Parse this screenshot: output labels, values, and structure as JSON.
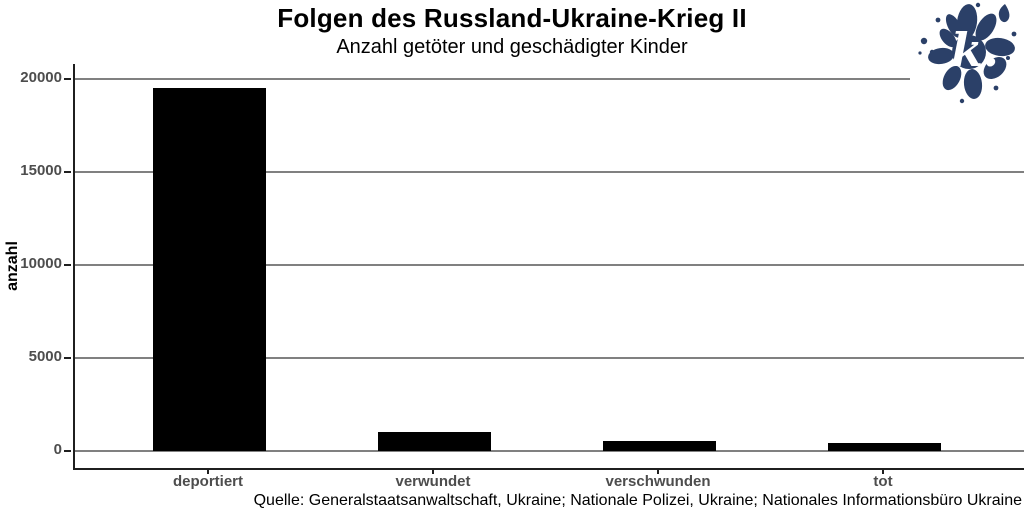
{
  "chart_data": {
    "type": "bar",
    "title": "Folgen des Russland-Ukraine-Krieg II",
    "subtitle": "Anzahl getöter und geschädigter Kinder",
    "ylabel": "anzahl",
    "xlabel": "",
    "caption": "Quelle: Generalstaatsanwaltschaft, Ukraine; Nationale Polizei, Ukraine; Nationales Informationsbüro Ukraine",
    "categories": [
      "deportiert",
      "verwundet",
      "verschwunden",
      "tot"
    ],
    "values": [
      19500,
      1030,
      555,
      450
    ],
    "yticks": [
      0,
      5000,
      10000,
      15000,
      20000
    ],
    "ylim": [
      0,
      20000
    ],
    "grid": "horizontal-major",
    "legend": "none",
    "bar_color": "#000000"
  },
  "logo": {
    "monogram": "k.",
    "color": "#2b4068"
  },
  "colors": {
    "background": "#ffffff",
    "bar": "#000000",
    "gridline": "#808080",
    "axis_line": "#1f1f1f",
    "axis_text": "#4d4d4d",
    "text": "#000000",
    "logo_navy": "#2b4068",
    "logo_monogram": "#ffffff"
  }
}
